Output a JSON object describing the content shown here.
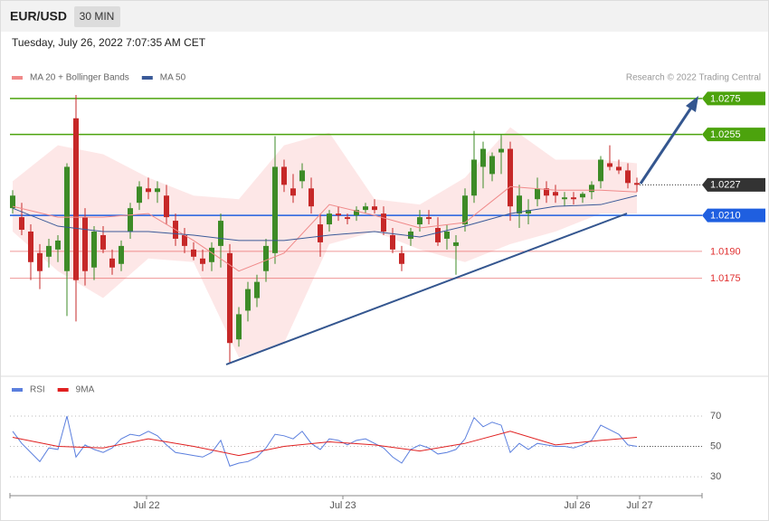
{
  "header": {
    "symbol": "EUR/USD",
    "timeframe": "30 MIN",
    "datetime": "Tuesday, July 26, 2022 7:07:35 AM CET"
  },
  "chart_data": [
    {
      "type": "candlestick",
      "credit": "Research © 2022 Trading Central",
      "up_color": "#3d8b27",
      "down_color": "#c62828",
      "xlim": [
        -0.5,
        76.2
      ],
      "ylim": [
        1.0121,
        1.0282
      ],
      "x": [
        0,
        1,
        2,
        3,
        4,
        5,
        6,
        7,
        8,
        9,
        10,
        11,
        12,
        13,
        14,
        15,
        16,
        17,
        18,
        19,
        20,
        21,
        22,
        23,
        24,
        25,
        26,
        27,
        28,
        29,
        30,
        31,
        32,
        33,
        34,
        35,
        36,
        37,
        38,
        39,
        40,
        41,
        42,
        43,
        44,
        45,
        46,
        47,
        48,
        49,
        50,
        51,
        52,
        53,
        54,
        55,
        56,
        57,
        58,
        59,
        60,
        61,
        62,
        63,
        64,
        65,
        66,
        67,
        68,
        69
      ],
      "open": [
        1.0214,
        1.0209,
        1.0201,
        1.0189,
        1.0187,
        1.0191,
        1.0179,
        1.0264,
        1.0209,
        1.0181,
        1.0199,
        1.0186,
        1.0183,
        1.0201,
        1.0217,
        1.0225,
        1.0223,
        1.0221,
        1.0207,
        1.0199,
        1.0191,
        1.0186,
        1.0184,
        1.0193,
        1.0189,
        1.0141,
        1.0157,
        1.0164,
        1.0179,
        1.0189,
        1.0237,
        1.0225,
        1.0229,
        1.0225,
        1.0205,
        1.0205,
        1.0211,
        1.0209,
        1.021,
        1.0213,
        1.0215,
        1.0211,
        1.0199,
        1.0189,
        1.0197,
        1.0205,
        1.0209,
        1.0203,
        1.0197,
        1.0193,
        1.0205,
        1.0221,
        1.0237,
        1.0233,
        1.0245,
        1.0247,
        1.0211,
        1.0211,
        1.0219,
        1.0225,
        1.0223,
        1.0219,
        1.022,
        1.022,
        1.0223,
        1.0229,
        1.0239,
        1.0237,
        1.0235,
        1.0228
      ],
      "high": [
        1.0224,
        1.0217,
        1.0205,
        1.0194,
        1.0197,
        1.0199,
        1.0239,
        1.0277,
        1.0214,
        1.0204,
        1.0204,
        1.0191,
        1.0196,
        1.0217,
        1.0229,
        1.0231,
        1.0229,
        1.0227,
        1.0211,
        1.0203,
        1.0195,
        1.0191,
        1.0195,
        1.0211,
        1.0194,
        1.0159,
        1.0173,
        1.0177,
        1.0197,
        1.0254,
        1.0241,
        1.0233,
        1.0239,
        1.0231,
        1.0211,
        1.0213,
        1.0215,
        1.0211,
        1.0215,
        1.0217,
        1.0219,
        1.0215,
        1.0203,
        1.0193,
        1.0203,
        1.0213,
        1.0213,
        1.0209,
        1.0205,
        1.0199,
        1.0225,
        1.0257,
        1.0251,
        1.0245,
        1.0255,
        1.0251,
        1.0227,
        1.0219,
        1.0231,
        1.0229,
        1.0227,
        1.0223,
        1.0223,
        1.0223,
        1.0229,
        1.0243,
        1.0249,
        1.0241,
        1.0239,
        1.0231
      ],
      "low": [
        1.0211,
        1.0199,
        1.0174,
        1.0169,
        1.0181,
        1.0184,
        1.0154,
        1.0151,
        1.0171,
        1.0174,
        1.0189,
        1.0177,
        1.0179,
        1.0197,
        1.0213,
        1.0219,
        1.0217,
        1.0205,
        1.0193,
        1.0189,
        1.0185,
        1.0179,
        1.0179,
        1.0181,
        1.0128,
        1.0137,
        1.0151,
        1.0159,
        1.0173,
        1.0183,
        1.0223,
        1.0217,
        1.0225,
        1.0211,
        1.0187,
        1.0201,
        1.0207,
        1.0205,
        1.0207,
        1.0211,
        1.0211,
        1.0199,
        1.0189,
        1.0179,
        1.0193,
        1.0201,
        1.0205,
        1.0193,
        1.0191,
        1.0177,
        1.0201,
        1.0217,
        1.0225,
        1.0229,
        1.0233,
        1.0207,
        1.0203,
        1.0205,
        1.0215,
        1.0217,
        1.0217,
        1.0215,
        1.0216,
        1.0217,
        1.0219,
        1.0225,
        1.0235,
        1.0233,
        1.0225,
        1.0223
      ],
      "close": [
        1.0221,
        1.0202,
        1.0184,
        1.0179,
        1.0193,
        1.0196,
        1.0237,
        1.0174,
        1.0179,
        1.0201,
        1.0191,
        1.0181,
        1.0193,
        1.0214,
        1.0226,
        1.0223,
        1.0225,
        1.0209,
        1.0197,
        1.0193,
        1.0187,
        1.0183,
        1.0192,
        1.0207,
        1.0139,
        1.0155,
        1.0169,
        1.0173,
        1.0193,
        1.0237,
        1.0227,
        1.0221,
        1.0235,
        1.0215,
        1.0195,
        1.0211,
        1.021,
        1.0208,
        1.0213,
        1.0215,
        1.0213,
        1.0201,
        1.0191,
        1.0183,
        1.0201,
        1.0209,
        1.0208,
        1.0195,
        1.0201,
        1.0195,
        1.0221,
        1.0241,
        1.0247,
        1.0243,
        1.0247,
        1.0215,
        1.0221,
        1.0213,
        1.0225,
        1.0221,
        1.0221,
        1.022,
        1.0219,
        1.0222,
        1.0227,
        1.0241,
        1.0237,
        1.0235,
        1.0228,
        1.0227
      ],
      "indicators": [
        {
          "name": "MA 20 + Bollinger Bands",
          "color": "#f08a8a",
          "band_color": "#fde3e3",
          "x": [
            0,
            5,
            10,
            15,
            20,
            25,
            30,
            35,
            40,
            45,
            50,
            55,
            60,
            65,
            69
          ],
          "values": [
            1.0215,
            1.0209,
            1.0209,
            1.0211,
            1.0196,
            1.0179,
            1.0189,
            1.0216,
            1.021,
            1.0203,
            1.0206,
            1.0226,
            1.0224,
            1.0224,
            1.0223
          ],
          "upper": [
            1.0229,
            1.0249,
            1.0244,
            1.0231,
            1.0221,
            1.0219,
            1.0249,
            1.0256,
            1.0219,
            1.0216,
            1.0231,
            1.0259,
            1.0241,
            1.0241,
            1.0239
          ],
          "lower": [
            1.0201,
            1.0179,
            1.0164,
            1.0186,
            1.0184,
            1.0131,
            1.0139,
            1.0194,
            1.0201,
            1.0191,
            1.0184,
            1.0194,
            1.0201,
            1.0211,
            1.0211
          ]
        },
        {
          "name": "MA 50",
          "color": "#3a5a98",
          "x": [
            0,
            5,
            10,
            15,
            20,
            25,
            30,
            35,
            40,
            45,
            50,
            55,
            60,
            65,
            69
          ],
          "values": [
            1.0214,
            1.0204,
            1.0201,
            1.0201,
            1.0199,
            1.0196,
            1.0196,
            1.0199,
            1.0201,
            1.0198,
            1.0204,
            1.0211,
            1.0215,
            1.0216,
            1.0221
          ]
        }
      ],
      "levels": [
        {
          "value": 1.0275,
          "color": "#4ca30d",
          "style": "box",
          "line": "solid"
        },
        {
          "value": 1.0255,
          "color": "#4ca30d",
          "style": "box",
          "line": "solid"
        },
        {
          "value": 1.0227,
          "color": "#333333",
          "style": "box",
          "line": "dotted"
        },
        {
          "value": 1.021,
          "label": "1.0210",
          "color": "#1f5fe0",
          "style": "box",
          "line": "solid"
        },
        {
          "value": 1.019,
          "label": "1.0190",
          "color": "#e03030",
          "style": "text",
          "line": "solid"
        },
        {
          "value": 1.0175,
          "color": "#e03030",
          "style": "text",
          "line": "solid"
        }
      ]
    },
    {
      "type": "line",
      "xlim": [
        -0.5,
        76.2
      ],
      "ylim": [
        19.3,
        90.9
      ],
      "yticks": [
        30,
        50,
        70
      ],
      "grid": true,
      "current": 50,
      "xticks": [
        {
          "value": 14.8,
          "label": "Jul 22"
        },
        {
          "value": 36.5,
          "label": "Jul 23"
        },
        {
          "value": 62.4,
          "label": "Jul 26"
        },
        {
          "value": 69.3,
          "label": "Jul 27"
        }
      ],
      "series": [
        {
          "name": "RSI",
          "color": "#5b7fde",
          "x": [
            0,
            1,
            2,
            3,
            4,
            5,
            6,
            7,
            8,
            9,
            10,
            11,
            12,
            13,
            14,
            15,
            16,
            17,
            18,
            19,
            20,
            21,
            22,
            23,
            24,
            25,
            26,
            27,
            28,
            29,
            30,
            31,
            32,
            33,
            34,
            35,
            36,
            37,
            38,
            39,
            40,
            41,
            42,
            43,
            44,
            45,
            46,
            47,
            48,
            49,
            50,
            51,
            52,
            53,
            54,
            55,
            56,
            57,
            58,
            59,
            60,
            61,
            62,
            63,
            64,
            65,
            66,
            67,
            68,
            69
          ],
          "values": [
            60,
            52,
            46,
            40,
            49,
            48,
            70,
            43,
            51,
            48,
            46,
            49,
            55,
            58,
            57,
            60,
            57,
            51,
            46,
            45,
            44,
            43,
            46,
            54,
            37,
            39,
            40,
            43,
            49,
            58,
            57,
            55,
            60,
            52,
            48,
            55,
            54,
            51,
            54,
            55,
            52,
            49,
            43,
            39,
            48,
            51,
            49,
            45,
            46,
            48,
            55,
            69,
            63,
            66,
            64,
            46,
            52,
            48,
            52,
            51,
            50,
            50,
            49,
            51,
            54,
            64,
            61,
            58,
            51,
            50
          ]
        },
        {
          "name": "9MA",
          "color": "#e02020",
          "x": [
            0,
            5,
            10,
            15,
            20,
            25,
            30,
            35,
            40,
            45,
            50,
            55,
            60,
            65,
            69
          ],
          "values": [
            56,
            50,
            49,
            55,
            50,
            44,
            50,
            53,
            51,
            47,
            52,
            60,
            51,
            54,
            56
          ]
        }
      ]
    }
  ]
}
